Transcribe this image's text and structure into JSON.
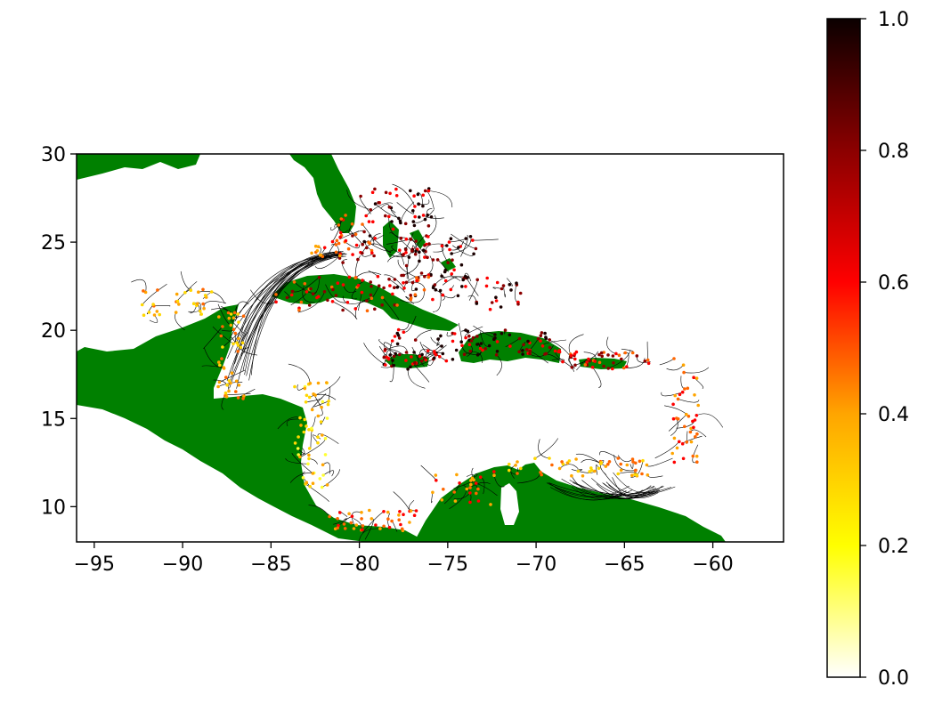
{
  "map": {
    "x_axis": {
      "min": -96,
      "max": -56,
      "ticks": [
        -95,
        -90,
        -85,
        -80,
        -75,
        -70,
        -65,
        -60
      ]
    },
    "y_axis": {
      "min": 8,
      "max": 30,
      "ticks": [
        10,
        15,
        20,
        25,
        30
      ]
    },
    "land_color": "#008000",
    "ocean_color": "#ffffff",
    "connection_color": "#000000"
  },
  "colorbar": {
    "colormap": "hot_r",
    "min": 0.0,
    "max": 1.0,
    "ticks": [
      "0.0",
      "0.2",
      "0.4",
      "0.6",
      "0.8",
      "1.0"
    ]
  }
}
